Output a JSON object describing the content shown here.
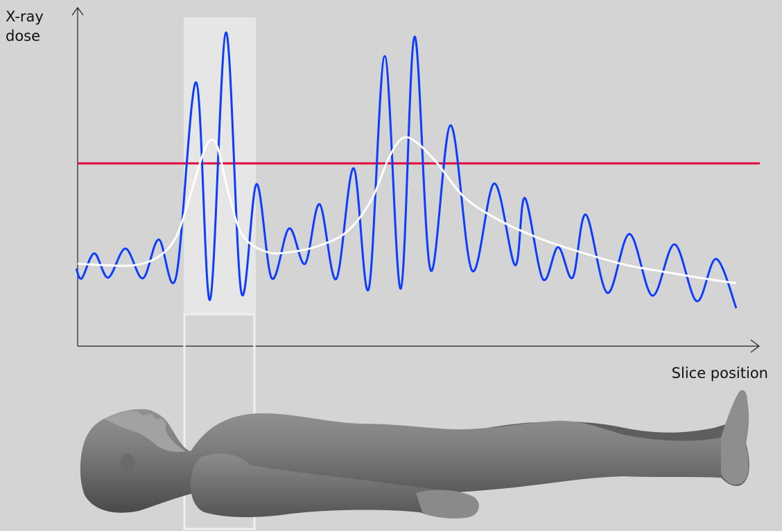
{
  "axes": {
    "y_label_line1": "X-ray",
    "y_label_line2": "dose",
    "x_label": "Slice position"
  },
  "colors": {
    "background": "#d4d4d4",
    "axis": "#222222",
    "modulated_dose": "#0b3cff",
    "average_dose": "#ffffff",
    "reference_level": "#e4003a",
    "highlight_band": "#e6e6e6",
    "body": "#7a7a7a"
  },
  "icons": {
    "figure": "supine-human-body"
  }
}
